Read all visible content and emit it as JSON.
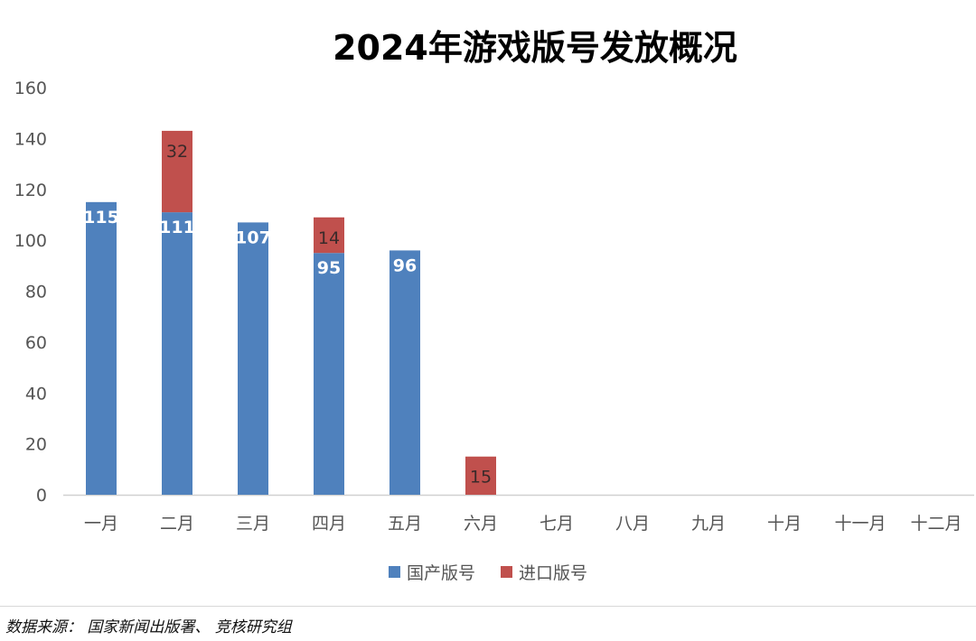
{
  "chart_data": {
    "type": "bar",
    "stacked": true,
    "title": "2024年游戏版号发放概况",
    "xlabel": "",
    "ylabel": "",
    "ylim": [
      0,
      160
    ],
    "yticks": [
      0,
      20,
      40,
      60,
      80,
      100,
      120,
      140,
      160
    ],
    "grid": false,
    "legend_position": "bottom",
    "categories": [
      "一月",
      "二月",
      "三月",
      "四月",
      "五月",
      "六月",
      "七月",
      "八月",
      "九月",
      "十月",
      "十一月",
      "十二月"
    ],
    "series": [
      {
        "name": "国产版号",
        "color": "#4F81BD",
        "label_color": "#ffffff",
        "values": [
          115,
          111,
          107,
          95,
          96,
          null,
          null,
          null,
          null,
          null,
          null,
          null
        ]
      },
      {
        "name": "进口版号",
        "color": "#C0504D",
        "label_color": "#3a2a2a",
        "values": [
          null,
          32,
          null,
          14,
          null,
          15,
          null,
          null,
          null,
          null,
          null,
          null
        ]
      }
    ]
  },
  "footer": {
    "source": "数据来源： 国家新闻出版署、 竞核研究组"
  }
}
